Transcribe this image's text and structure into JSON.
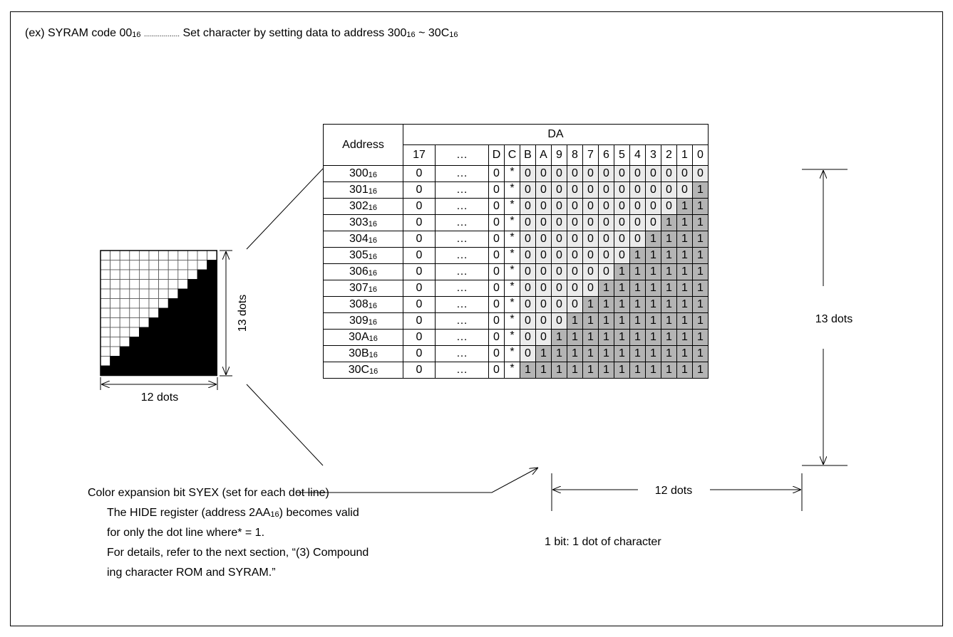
{
  "header": {
    "prefix": "(ex) SYRAM code 00",
    "prefix_sub": "16",
    "leader": "..................",
    "text": "Set character by setting data to address 300",
    "text_sub1": "16",
    "text_mid": " ~ 30C",
    "text_sub2": "16"
  },
  "table": {
    "address_header": "Address",
    "da_header": "DA",
    "columns": [
      "17",
      "…",
      "D",
      "C",
      "B",
      "A",
      "9",
      "8",
      "7",
      "6",
      "5",
      "4",
      "3",
      "2",
      "1",
      "0"
    ],
    "hex_suffix": "16",
    "rows": [
      {
        "addr": "300",
        "prefix": [
          "0",
          "…",
          "0",
          "*"
        ],
        "bits": [
          "0",
          "0",
          "0",
          "0",
          "0",
          "0",
          "0",
          "0",
          "0",
          "0",
          "0",
          "0"
        ]
      },
      {
        "addr": "301",
        "prefix": [
          "0",
          "…",
          "0",
          "*"
        ],
        "bits": [
          "0",
          "0",
          "0",
          "0",
          "0",
          "0",
          "0",
          "0",
          "0",
          "0",
          "0",
          "1"
        ]
      },
      {
        "addr": "302",
        "prefix": [
          "0",
          "…",
          "0",
          "*"
        ],
        "bits": [
          "0",
          "0",
          "0",
          "0",
          "0",
          "0",
          "0",
          "0",
          "0",
          "0",
          "1",
          "1"
        ]
      },
      {
        "addr": "303",
        "prefix": [
          "0",
          "…",
          "0",
          "*"
        ],
        "bits": [
          "0",
          "0",
          "0",
          "0",
          "0",
          "0",
          "0",
          "0",
          "0",
          "1",
          "1",
          "1"
        ]
      },
      {
        "addr": "304",
        "prefix": [
          "0",
          "…",
          "0",
          "*"
        ],
        "bits": [
          "0",
          "0",
          "0",
          "0",
          "0",
          "0",
          "0",
          "0",
          "1",
          "1",
          "1",
          "1"
        ]
      },
      {
        "addr": "305",
        "prefix": [
          "0",
          "…",
          "0",
          "*"
        ],
        "bits": [
          "0",
          "0",
          "0",
          "0",
          "0",
          "0",
          "0",
          "1",
          "1",
          "1",
          "1",
          "1"
        ]
      },
      {
        "addr": "306",
        "prefix": [
          "0",
          "…",
          "0",
          "*"
        ],
        "bits": [
          "0",
          "0",
          "0",
          "0",
          "0",
          "0",
          "1",
          "1",
          "1",
          "1",
          "1",
          "1"
        ]
      },
      {
        "addr": "307",
        "prefix": [
          "0",
          "…",
          "0",
          "*"
        ],
        "bits": [
          "0",
          "0",
          "0",
          "0",
          "0",
          "1",
          "1",
          "1",
          "1",
          "1",
          "1",
          "1"
        ]
      },
      {
        "addr": "308",
        "prefix": [
          "0",
          "…",
          "0",
          "*"
        ],
        "bits": [
          "0",
          "0",
          "0",
          "0",
          "1",
          "1",
          "1",
          "1",
          "1",
          "1",
          "1",
          "1"
        ]
      },
      {
        "addr": "309",
        "prefix": [
          "0",
          "…",
          "0",
          "*"
        ],
        "bits": [
          "0",
          "0",
          "0",
          "1",
          "1",
          "1",
          "1",
          "1",
          "1",
          "1",
          "1",
          "1"
        ]
      },
      {
        "addr": "30A",
        "prefix": [
          "0",
          "…",
          "0",
          "*"
        ],
        "bits": [
          "0",
          "0",
          "1",
          "1",
          "1",
          "1",
          "1",
          "1",
          "1",
          "1",
          "1",
          "1"
        ]
      },
      {
        "addr": "30B",
        "prefix": [
          "0",
          "…",
          "0",
          "*"
        ],
        "bits": [
          "0",
          "1",
          "1",
          "1",
          "1",
          "1",
          "1",
          "1",
          "1",
          "1",
          "1",
          "1"
        ]
      },
      {
        "addr": "30C",
        "prefix": [
          "0",
          "…",
          "0",
          "*"
        ],
        "bits": [
          "1",
          "1",
          "1",
          "1",
          "1",
          "1",
          "1",
          "1",
          "1",
          "1",
          "1",
          "1"
        ]
      }
    ],
    "zero_color": "#ebebeb",
    "one_color": "#b4b4b4"
  },
  "character": {
    "columns": 12,
    "rows": 13,
    "height_label": "13 dots",
    "width_label": "12 dots"
  },
  "dimensions": {
    "right_label": "13 dots",
    "bottom_label": "12 dots"
  },
  "notes": {
    "color_bit": "Color expansion bit SYEX (set for each dot line)",
    "line1": "The HIDE register (address 2AA",
    "line1_sub": "16",
    "line1_end": ") becomes valid",
    "line2": "for only the dot line where* = 1.",
    "line3": "For details, refer to the next section, “(3) Compound",
    "line4": "ing character ROM and SYRAM.”",
    "bit_note": "1 bit: 1 dot of character"
  }
}
